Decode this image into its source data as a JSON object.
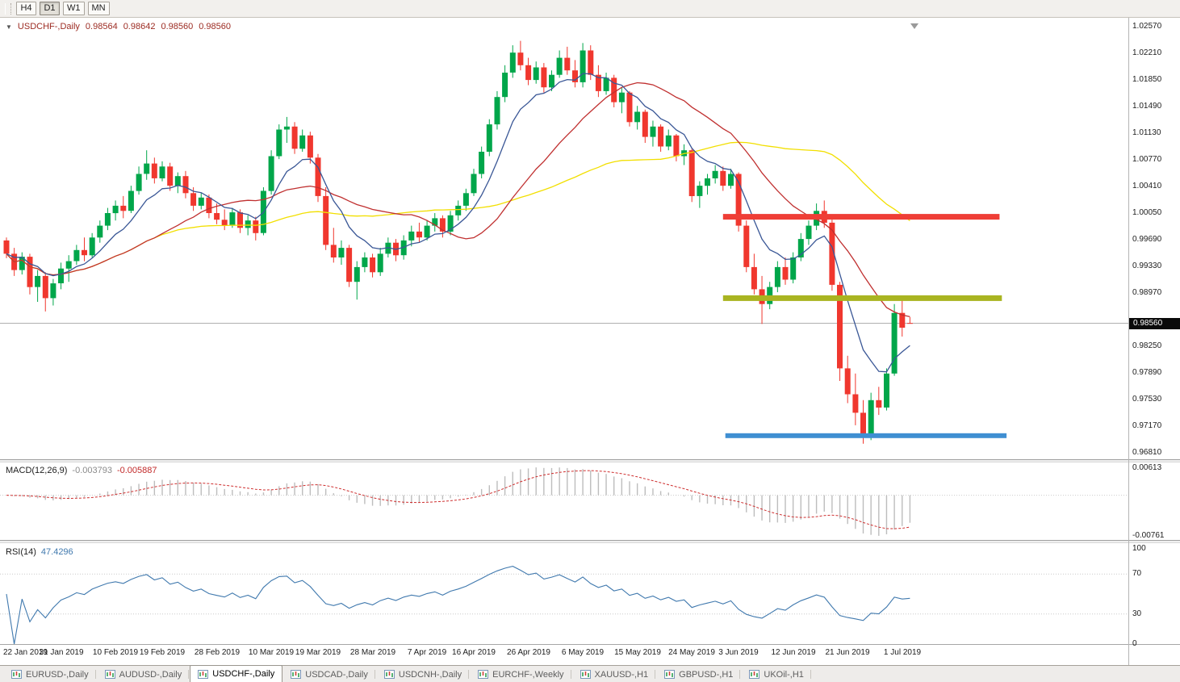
{
  "toolbar": {
    "buttons": [
      {
        "label": "H4",
        "active": false
      },
      {
        "label": "D1",
        "active": true
      },
      {
        "label": "W1",
        "active": false
      },
      {
        "label": "MN",
        "active": false
      }
    ]
  },
  "chart": {
    "title_symbol": "USDCHF-,Daily",
    "ohlc": {
      "open": "0.98564",
      "high": "0.98642",
      "low": "0.98560",
      "close": "0.98560"
    },
    "current_price": "0.98560",
    "price_scale_labels": [
      "1.02570",
      "1.02210",
      "1.01850",
      "1.01490",
      "1.01130",
      "1.00770",
      "1.00410",
      "1.00050",
      "0.99690",
      "0.99330",
      "0.98970",
      "0.98250",
      "0.97890",
      "0.97530",
      "0.97170",
      "0.96810"
    ]
  },
  "chart_data": {
    "type": "candlestick",
    "symbol": "USDCHF-",
    "timeframe": "Daily",
    "y_axis": {
      "min": 0.9671,
      "max": 1.0267
    },
    "colors": {
      "up": "#00A64A",
      "down": "#F0372E",
      "background": "#FFFFFF",
      "current_price_line": "#B0B0B0"
    },
    "x_labels": [
      {
        "i": 0,
        "t": "22 Jan 2019"
      },
      {
        "i": 7,
        "t": "31 Jan 2019"
      },
      {
        "i": 14,
        "t": "10 Feb 2019"
      },
      {
        "i": 20,
        "t": "19 Feb 2019"
      },
      {
        "i": 27,
        "t": "28 Feb 2019"
      },
      {
        "i": 34,
        "t": "10 Mar 2019"
      },
      {
        "i": 40,
        "t": "19 Mar 2019"
      },
      {
        "i": 47,
        "t": "28 Mar 2019"
      },
      {
        "i": 54,
        "t": "7 Apr 2019"
      },
      {
        "i": 60,
        "t": "16 Apr 2019"
      },
      {
        "i": 67,
        "t": "26 Apr 2019"
      },
      {
        "i": 74,
        "t": "6 May 2019"
      },
      {
        "i": 81,
        "t": "15 May 2019"
      },
      {
        "i": 88,
        "t": "24 May 2019"
      },
      {
        "i": 94,
        "t": "3 Jun 2019"
      },
      {
        "i": 101,
        "t": "12 Jun 2019"
      },
      {
        "i": 108,
        "t": "21 Jun 2019"
      },
      {
        "i": 115,
        "t": "1 Jul 2019"
      }
    ],
    "candles": [
      [
        0.9968,
        0.9972,
        0.9944,
        0.995
      ],
      [
        0.995,
        0.9958,
        0.992,
        0.9928
      ],
      [
        0.9928,
        0.9952,
        0.9922,
        0.9946
      ],
      [
        0.9946,
        0.995,
        0.9895,
        0.9905
      ],
      [
        0.9905,
        0.9928,
        0.9885,
        0.992
      ],
      [
        0.992,
        0.9925,
        0.9872,
        0.989
      ],
      [
        0.989,
        0.9916,
        0.988,
        0.991
      ],
      [
        0.991,
        0.9938,
        0.9902,
        0.993
      ],
      [
        0.993,
        0.9948,
        0.9912,
        0.994
      ],
      [
        0.994,
        0.9962,
        0.9935,
        0.9955
      ],
      [
        0.9955,
        0.9972,
        0.994,
        0.9948
      ],
      [
        0.9948,
        0.9978,
        0.9945,
        0.9972
      ],
      [
        0.9972,
        0.9995,
        0.9965,
        0.9988
      ],
      [
        0.9988,
        1.0012,
        0.9982,
        1.0005
      ],
      [
        1.0005,
        1.0022,
        0.9995,
        1.0015
      ],
      [
        1.0015,
        1.0028,
        0.9998,
        1.0008
      ],
      [
        1.0008,
        1.0042,
        1.0005,
        1.0035
      ],
      [
        1.0035,
        1.0068,
        1.003,
        1.0058
      ],
      [
        1.0058,
        1.009,
        1.005,
        1.0072
      ],
      [
        1.0072,
        1.008,
        1.0045,
        1.0052
      ],
      [
        1.0052,
        1.0075,
        1.0048,
        1.0068
      ],
      [
        1.0068,
        1.0073,
        1.0035,
        1.0042
      ],
      [
        1.0042,
        1.006,
        1.0032,
        1.0055
      ],
      [
        1.0055,
        1.0062,
        1.0025,
        1.0032
      ],
      [
        1.0032,
        1.004,
        1.0008,
        1.0015
      ],
      [
        1.0015,
        1.0032,
        1.001,
        1.0026
      ],
      [
        1.0026,
        1.003,
        0.9998,
        1.0005
      ],
      [
        1.0005,
        1.0018,
        0.999,
        0.9996
      ],
      [
        0.9996,
        1.001,
        0.9982,
        0.9988
      ],
      [
        0.9988,
        1.0012,
        0.9985,
        1.0006
      ],
      [
        1.0006,
        1.001,
        0.9978,
        0.9985
      ],
      [
        0.9985,
        1.0002,
        0.9975,
        0.9995
      ],
      [
        0.9995,
        1.0,
        0.9968,
        0.9978
      ],
      [
        0.9978,
        1.004,
        0.9975,
        1.0035
      ],
      [
        1.0035,
        1.009,
        1.003,
        1.0082
      ],
      [
        1.0082,
        1.0125,
        1.0078,
        1.0118
      ],
      [
        1.0118,
        1.0135,
        1.01,
        1.0122
      ],
      [
        1.0122,
        1.0128,
        1.0085,
        1.0092
      ],
      [
        1.0092,
        1.0118,
        1.0088,
        1.011
      ],
      [
        1.011,
        1.0115,
        1.0072,
        1.008
      ],
      [
        1.008,
        1.0085,
        1.002,
        1.0028
      ],
      [
        1.0028,
        1.004,
        0.9955,
        0.9962
      ],
      [
        0.9962,
        0.9985,
        0.9938,
        0.9945
      ],
      [
        0.9945,
        0.9968,
        0.9935,
        0.9958
      ],
      [
        0.9958,
        0.9962,
        0.9905,
        0.9912
      ],
      [
        0.9912,
        0.994,
        0.9888,
        0.9932
      ],
      [
        0.9932,
        0.9952,
        0.9925,
        0.9945
      ],
      [
        0.9945,
        0.995,
        0.9918,
        0.9925
      ],
      [
        0.9925,
        0.9958,
        0.992,
        0.995
      ],
      [
        0.995,
        0.9972,
        0.9945,
        0.9965
      ],
      [
        0.9965,
        0.997,
        0.994,
        0.9948
      ],
      [
        0.9948,
        0.9975,
        0.9942,
        0.9968
      ],
      [
        0.9968,
        0.9988,
        0.996,
        0.998
      ],
      [
        0.998,
        0.9992,
        0.9965,
        0.9972
      ],
      [
        0.9972,
        0.9995,
        0.9968,
        0.9988
      ],
      [
        0.9988,
        1.0005,
        0.998,
        0.9998
      ],
      [
        0.9998,
        1.0002,
        0.9972,
        0.998
      ],
      [
        0.998,
        1.0008,
        0.9975,
        1.0002
      ],
      [
        1.0002,
        1.0022,
        0.9995,
        1.0015
      ],
      [
        1.0015,
        1.0038,
        1.0008,
        1.0032
      ],
      [
        1.0032,
        1.0065,
        1.0028,
        1.0058
      ],
      [
        1.0058,
        1.0095,
        1.0052,
        1.0088
      ],
      [
        1.0088,
        1.0132,
        1.0082,
        1.0125
      ],
      [
        1.0125,
        1.017,
        1.0118,
        1.0162
      ],
      [
        1.0162,
        1.0205,
        1.0155,
        1.0195
      ],
      [
        1.0195,
        1.0232,
        1.0188,
        1.0222
      ],
      [
        1.0222,
        1.0238,
        1.0198,
        1.0205
      ],
      [
        1.0205,
        1.0215,
        1.0178,
        1.0185
      ],
      [
        1.0185,
        1.021,
        1.018,
        1.0202
      ],
      [
        1.0202,
        1.0208,
        1.0168,
        1.0175
      ],
      [
        1.0175,
        1.0198,
        1.017,
        1.0192
      ],
      [
        1.0192,
        1.0225,
        1.0188,
        1.0215
      ],
      [
        1.0215,
        1.023,
        1.0192,
        1.0198
      ],
      [
        1.0198,
        1.0212,
        1.0175,
        1.0182
      ],
      [
        1.0182,
        1.0235,
        1.0175,
        1.0225
      ],
      [
        1.0225,
        1.0232,
        1.0185,
        1.0192
      ],
      [
        1.0192,
        1.0205,
        1.0162,
        1.017
      ],
      [
        1.017,
        1.0195,
        1.0165,
        1.0188
      ],
      [
        1.0188,
        1.0192,
        1.0148,
        1.0155
      ],
      [
        1.0155,
        1.0175,
        1.014,
        1.0168
      ],
      [
        1.0168,
        1.017,
        1.0122,
        1.0128
      ],
      [
        1.0128,
        1.015,
        1.0118,
        1.0142
      ],
      [
        1.0142,
        1.0145,
        1.01,
        1.0108
      ],
      [
        1.0108,
        1.013,
        1.0095,
        1.0122
      ],
      [
        1.0122,
        1.0125,
        1.0088,
        1.0095
      ],
      [
        1.0095,
        1.0118,
        1.009,
        1.011
      ],
      [
        1.011,
        1.0112,
        1.0075,
        1.0082
      ],
      [
        1.0082,
        1.0098,
        1.007,
        1.009
      ],
      [
        1.009,
        1.0092,
        1.002,
        1.0028
      ],
      [
        1.0028,
        1.0048,
        1.0012,
        1.0042
      ],
      [
        1.0042,
        1.0058,
        1.003,
        1.0052
      ],
      [
        1.0052,
        1.007,
        1.0045,
        1.0062
      ],
      [
        1.0062,
        1.0068,
        1.0035,
        1.0042
      ],
      [
        1.0042,
        1.0065,
        1.0038,
        1.0058
      ],
      [
        1.0058,
        1.006,
        0.998,
        0.9988
      ],
      [
        0.9988,
        0.9995,
        0.9925,
        0.9932
      ],
      [
        0.9932,
        0.995,
        0.9895,
        0.9902
      ],
      [
        0.9902,
        0.992,
        0.9855,
        0.9882
      ],
      [
        0.9882,
        0.9912,
        0.9875,
        0.9905
      ],
      [
        0.9905,
        0.994,
        0.9898,
        0.9932
      ],
      [
        0.9932,
        0.9945,
        0.9908,
        0.9915
      ],
      [
        0.9915,
        0.9952,
        0.991,
        0.9945
      ],
      [
        0.9945,
        0.9978,
        0.994,
        0.997
      ],
      [
        0.997,
        0.9995,
        0.9962,
        0.9988
      ],
      [
        0.9988,
        1.0018,
        0.9982,
        1.0008
      ],
      [
        1.0008,
        1.0022,
        0.9985,
        0.9992
      ],
      [
        0.9992,
        0.9998,
        0.99,
        0.9908
      ],
      [
        0.9908,
        0.9912,
        0.9778,
        0.9795
      ],
      [
        0.9795,
        0.9812,
        0.9748,
        0.976
      ],
      [
        0.976,
        0.9788,
        0.9718,
        0.9735
      ],
      [
        0.9735,
        0.9752,
        0.9693,
        0.9705
      ],
      [
        0.9705,
        0.9762,
        0.9698,
        0.9752
      ],
      [
        0.9752,
        0.977,
        0.9732,
        0.9742
      ],
      [
        0.9742,
        0.9795,
        0.9738,
        0.9788
      ],
      [
        0.9788,
        0.9882,
        0.9785,
        0.987
      ],
      [
        0.987,
        0.9888,
        0.9838,
        0.985
      ],
      [
        0.98564,
        0.98642,
        0.9856,
        0.9856
      ]
    ],
    "moving_averages": [
      {
        "name": "slow",
        "method": "sma",
        "period": 45,
        "color": "#F2DF00"
      },
      {
        "name": "mid",
        "method": "sma",
        "period": 20,
        "color": "#C03030"
      },
      {
        "name": "fast",
        "method": "ema",
        "period": 8,
        "color": "#3A5796"
      }
    ],
    "horizontal_lines": [
      {
        "name": "resistance-line",
        "price": 1.0,
        "color": "#EF3E36",
        "from_index": 92,
        "to_index": 127.5,
        "thickness": 7
      },
      {
        "name": "mid-support-line",
        "price": 0.989,
        "color": "#A9B421",
        "from_index": 92,
        "to_index": 127.8,
        "thickness": 7
      },
      {
        "name": "lower-support-line",
        "price": 0.9704,
        "color": "#3F8FD2",
        "from_index": 92.3,
        "to_index": 128.4,
        "thickness": 6
      }
    ],
    "indicators": {
      "macd": {
        "label": "MACD(12,26,9)",
        "main_value": "-0.003793",
        "signal_value": "-0.005887",
        "scale_top": "0.00613",
        "scale_bottom": "-0.00761",
        "fast": 12,
        "slow": 26,
        "signal": 9,
        "histogram_color": "#BDBDBD",
        "signal_color": "#CE2F2F"
      },
      "rsi": {
        "label": "RSI(14)",
        "value": "47.4296",
        "period": 14,
        "scale": [
          "100",
          "70",
          "30",
          "0"
        ],
        "levels": [
          70,
          30
        ],
        "line_color": "#4079AE"
      }
    }
  },
  "tabs": {
    "active_index": 2,
    "items": [
      "EURUSD-,Daily",
      "AUDUSD-,Daily",
      "USDCHF-,Daily",
      "USDCAD-,Daily",
      "USDCNH-,Daily",
      "EURCHF-,Weekly",
      "XAUUSD-,H1",
      "GBPUSD-,H1",
      "UKOil-,H1"
    ]
  }
}
